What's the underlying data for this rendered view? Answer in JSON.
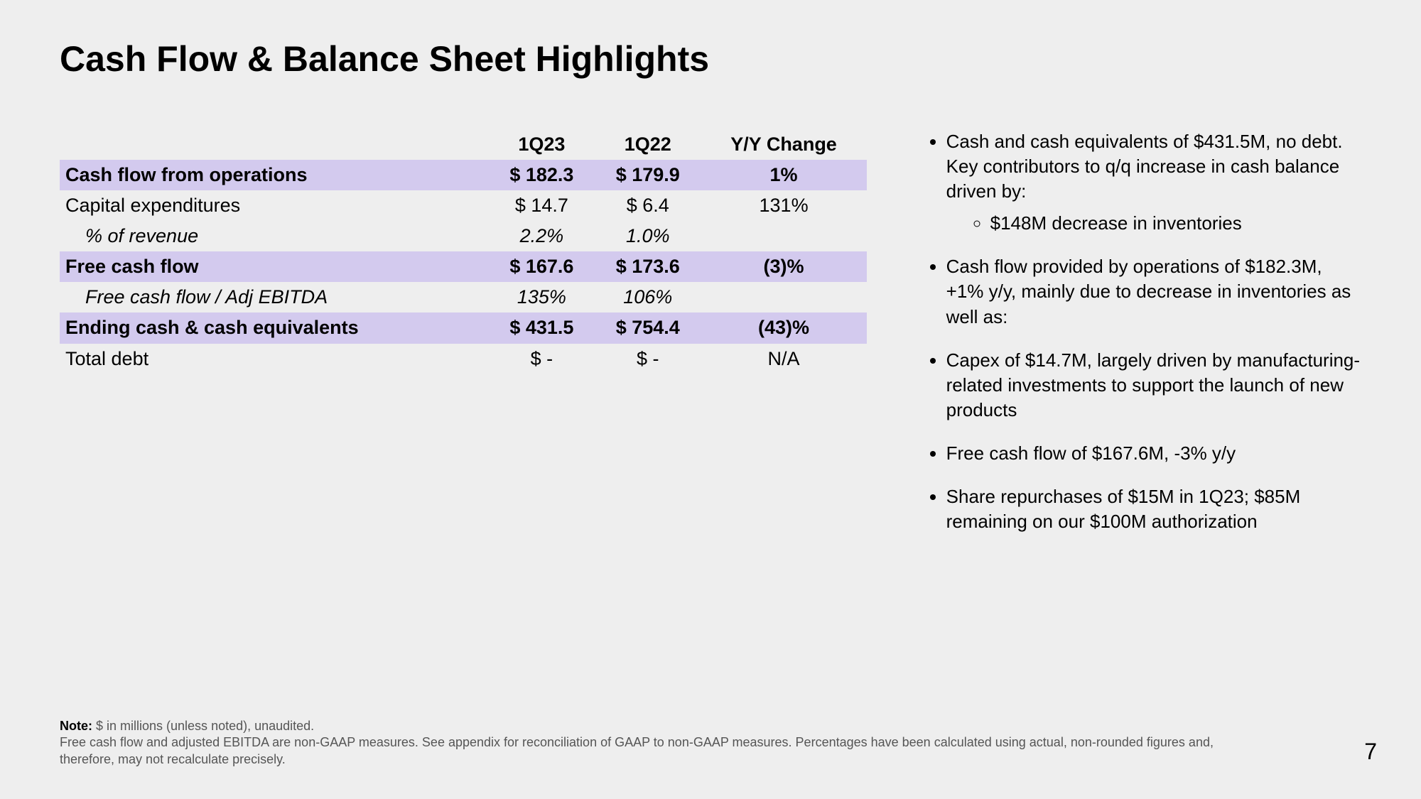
{
  "title": "Cash Flow & Balance Sheet Highlights",
  "page_number": "7",
  "colors": {
    "background": "#eeeeee",
    "highlight_row": "#d3caee",
    "text": "#000000",
    "footnote": "#555555"
  },
  "table": {
    "columns": [
      "",
      "1Q23",
      "1Q22",
      "Y/Y Change"
    ],
    "rows": [
      {
        "label": "Cash flow from operations",
        "q23": "$ 182.3",
        "q22": "$ 179.9",
        "yy": "1%",
        "highlight": true,
        "italic": false,
        "indent": false
      },
      {
        "label": "Capital expenditures",
        "q23": "$ 14.7",
        "q22": "$ 6.4",
        "yy": "131%",
        "highlight": false,
        "italic": false,
        "indent": false
      },
      {
        "label": "% of revenue",
        "q23": "2.2%",
        "q22": "1.0%",
        "yy": "",
        "highlight": false,
        "italic": true,
        "indent": true
      },
      {
        "label": "Free cash flow",
        "q23": "$ 167.6",
        "q22": "$ 173.6",
        "yy": "(3)%",
        "highlight": true,
        "italic": false,
        "indent": false
      },
      {
        "label": "Free cash flow / Adj EBITDA",
        "q23": "135%",
        "q22": "106%",
        "yy": "",
        "highlight": false,
        "italic": true,
        "indent": true
      },
      {
        "label": "Ending cash & cash equivalents",
        "q23": "$ 431.5",
        "q22": "$ 754.4",
        "yy": "(43)%",
        "highlight": true,
        "italic": false,
        "indent": false
      },
      {
        "label": "Total debt",
        "q23": "$ -",
        "q22": "$ -",
        "yy": "N/A",
        "highlight": false,
        "italic": false,
        "indent": false
      }
    ]
  },
  "bullets": [
    {
      "text": "Cash and cash equivalents of $431.5M, no debt. Key contributors to q/q increase in cash balance driven by:",
      "sub": [
        "$148M decrease in inventories"
      ]
    },
    {
      "text": "Cash flow provided by operations of $182.3M, +1% y/y, mainly due to decrease in inventories as well as:",
      "sub": []
    },
    {
      "text": "Capex of $14.7M, largely driven by manufacturing-related investments to support the launch of new products",
      "sub": []
    },
    {
      "text": "Free cash flow of $167.6M, -3% y/y",
      "sub": []
    },
    {
      "text": "Share repurchases of $15M in 1Q23; $85M remaining on our $100M authorization",
      "sub": []
    }
  ],
  "footnote": {
    "label": "Note:",
    "line1": " $ in millions (unless noted), unaudited.",
    "line2": "Free cash flow and adjusted EBITDA are non-GAAP measures. See appendix for reconciliation of GAAP to non-GAAP measures. Percentages have been calculated using actual, non-rounded figures and, therefore, may not recalculate precisely."
  }
}
